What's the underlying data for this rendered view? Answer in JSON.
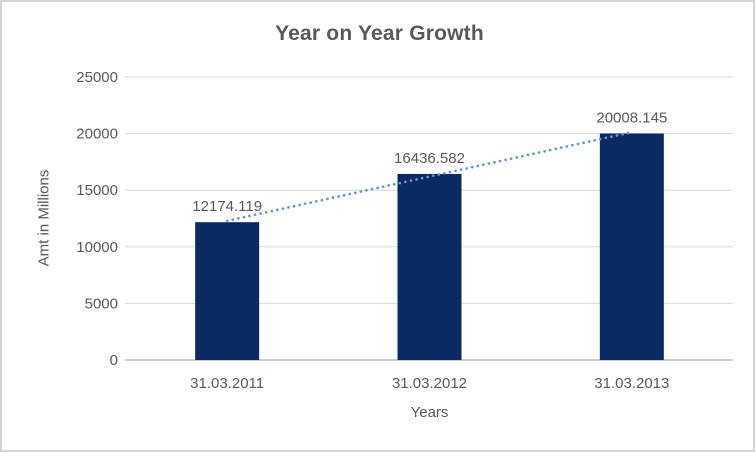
{
  "chart_data": {
    "type": "bar",
    "title": "Year on Year Growth",
    "xlabel": "Years",
    "ylabel": "Amt in Millions",
    "categories": [
      "31.03.2011",
      "31.03.2012",
      "31.03.2013"
    ],
    "values": [
      12174.119,
      16436.582,
      20008.145
    ],
    "value_labels": [
      "12174.119",
      "16436.582",
      "20008.145"
    ],
    "ylim": [
      0,
      25000
    ],
    "yticks": [
      0,
      5000,
      10000,
      15000,
      20000,
      25000
    ],
    "grid": true,
    "legend_position": "none",
    "trendline": {
      "type": "linear",
      "style": "dotted"
    },
    "colors": {
      "bar": "#0a2a64",
      "trendline": "#5b9bd5",
      "gridline": "#d9d9d9",
      "axis_line": "#bfbfbf",
      "text": "#595959",
      "background": "#ffffff",
      "frame_border": "#d3d3d3"
    }
  }
}
